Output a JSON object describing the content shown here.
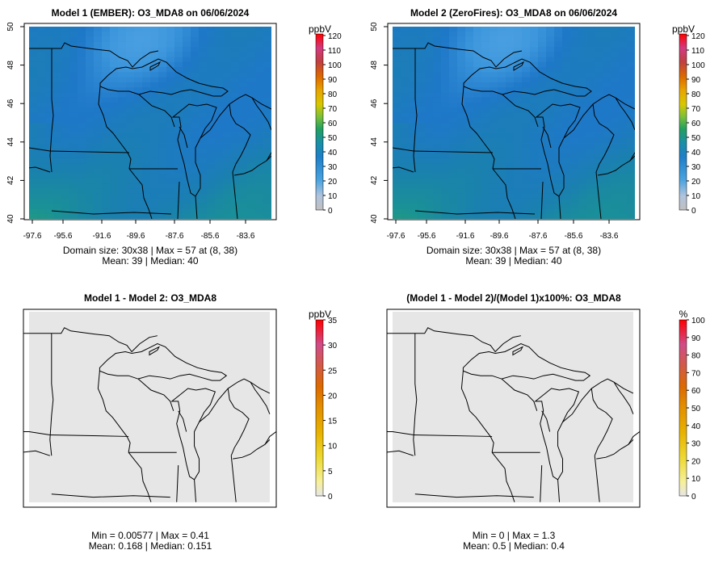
{
  "colors": {
    "scale_ppb": [
      "#c0c0c0",
      "#a8c8e8",
      "#3f9fe0",
      "#1f77c0",
      "#1a8fa0",
      "#2aa55a",
      "#9ccc3a",
      "#e0c000",
      "#e07a00",
      "#cc3300",
      "#c02060",
      "#e03070",
      "#ff0000"
    ],
    "scale_diff": [
      "#e6e6e6",
      "#f5f08a",
      "#eedc2c",
      "#e8b400",
      "#e39000",
      "#dc6a00",
      "#d85a40",
      "#d04c80",
      "#e03a60",
      "#ff0000"
    ],
    "land_diff": "#e6e6e6",
    "border": "#000000"
  },
  "chart_data": [
    {
      "type": "heatmap",
      "title": "Model 1 (EMBER): O3_MDA8 on 06/06/2024",
      "x_ticks": [
        "-97.6",
        "-95.6",
        "-91.6",
        "-89.6",
        "-87.6",
        "-85.6",
        "-83.6"
      ],
      "y_ticks": [
        "40",
        "42",
        "44",
        "46",
        "48",
        "50"
      ],
      "colorbar": {
        "unit": "ppbV",
        "ticks": [
          "120",
          "110",
          "100",
          "90",
          "80",
          "70",
          "60",
          "50",
          "40",
          "30",
          "20",
          "10",
          "0"
        ],
        "range": [
          0,
          120
        ]
      },
      "domain_size": "30x38",
      "max": 57,
      "max_at": [
        8,
        38
      ],
      "mean": 39,
      "median": 40,
      "stats_line1": "Domain size: 30x38 | Max = 57 at (8, 38)",
      "stats_line2": "Mean: 39 |  Median: 40"
    },
    {
      "type": "heatmap",
      "title": "Model 2 (ZeroFires): O3_MDA8 on 06/06/2024",
      "x_ticks": [
        "-97.6",
        "-95.6",
        "-91.6",
        "-89.6",
        "-87.6",
        "-85.6",
        "-83.6"
      ],
      "y_ticks": [
        "40",
        "42",
        "44",
        "46",
        "48",
        "50"
      ],
      "colorbar": {
        "unit": "ppbV",
        "ticks": [
          "120",
          "110",
          "100",
          "90",
          "80",
          "70",
          "60",
          "50",
          "40",
          "30",
          "20",
          "10",
          "0"
        ],
        "range": [
          0,
          120
        ]
      },
      "domain_size": "30x38",
      "max": 57,
      "max_at": [
        8,
        38
      ],
      "mean": 39,
      "median": 40,
      "stats_line1": "Domain size: 30x38 | Max = 57 at (8, 38)",
      "stats_line2": "Mean: 39 |  Median: 40"
    },
    {
      "type": "heatmap",
      "title": "Model 1 - Model 2: O3_MDA8",
      "colorbar": {
        "unit": "ppbV",
        "ticks": [
          "35",
          "30",
          "25",
          "20",
          "15",
          "10",
          "5",
          "0"
        ],
        "range": [
          0,
          35
        ]
      },
      "min": 0.00577,
      "max": 0.41,
      "mean": 0.168,
      "median": 0.151,
      "stats_line1": "Min = 0.00577 | Max = 0.41",
      "stats_line2": "Mean: 0.168 |  Median: 0.151"
    },
    {
      "type": "heatmap",
      "title": "(Model 1 - Model 2)/(Model 1)x100%: O3_MDA8",
      "colorbar": {
        "unit": "%",
        "ticks": [
          "100",
          "90",
          "80",
          "70",
          "60",
          "50",
          "40",
          "30",
          "20",
          "10",
          "0"
        ],
        "range": [
          0,
          100
        ]
      },
      "min": 0,
      "max": 1.3,
      "mean": 0.5,
      "median": 0.4,
      "stats_line1": "Min = 0 | Max = 1.3",
      "stats_line2": "Mean: 0.5 |  Median: 0.4"
    }
  ]
}
